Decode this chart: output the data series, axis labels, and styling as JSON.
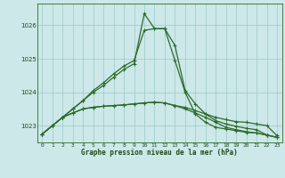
{
  "hours": [
    0,
    1,
    2,
    3,
    4,
    5,
    6,
    7,
    8,
    9,
    10,
    11,
    12,
    13,
    14,
    15,
    16,
    17,
    18,
    19,
    20,
    21,
    22,
    23
  ],
  "line1": [
    1022.75,
    1023.0,
    1023.25,
    1023.38,
    1023.5,
    1023.55,
    1023.58,
    1023.6,
    1023.62,
    1023.65,
    1023.68,
    1023.7,
    1023.68,
    1023.6,
    1023.55,
    1023.45,
    1023.35,
    1023.25,
    1023.18,
    1023.12,
    1023.1,
    1023.05,
    1023.0,
    1022.7
  ],
  "line2": [
    1022.75,
    1023.0,
    1023.25,
    1023.38,
    1023.5,
    1023.55,
    1023.58,
    1023.6,
    1023.62,
    1023.65,
    1023.68,
    1023.7,
    1023.68,
    1023.6,
    1023.5,
    1023.38,
    1023.25,
    1023.1,
    1022.95,
    1022.88,
    1022.82,
    1022.78,
    1022.72,
    1022.65
  ],
  "line3": [
    1022.75,
    1023.0,
    1023.25,
    1023.5,
    1023.75,
    1024.05,
    1024.28,
    1024.55,
    1024.78,
    1024.95,
    1025.85,
    1025.9,
    1025.9,
    1025.4,
    1024.05,
    1023.65,
    1023.35,
    1023.15,
    1023.05,
    1022.98,
    1022.92,
    1022.88,
    1022.72,
    1022.65
  ],
  "line4": [
    1022.75,
    1023.0,
    1023.25,
    1023.5,
    1023.75,
    1024.0,
    1024.2,
    1024.45,
    1024.68,
    1024.85,
    1026.35,
    1025.9,
    1025.9,
    1024.95,
    1024.0,
    1023.35,
    1023.1,
    1022.95,
    1022.9,
    1022.85,
    1022.8,
    1022.78,
    1022.72,
    1022.65
  ],
  "line_color": "#2d6a2d",
  "bg_color": "#cce8e8",
  "grid_color": "#9ec8c8",
  "ylim": [
    1022.5,
    1026.65
  ],
  "yticks": [
    1023,
    1024,
    1025,
    1026
  ],
  "xlabel": "Graphe pression niveau de la mer (hPa)",
  "tick_color": "#1a4a1a",
  "marker": "+",
  "figwidth": 3.2,
  "figheight": 2.0,
  "dpi": 100
}
